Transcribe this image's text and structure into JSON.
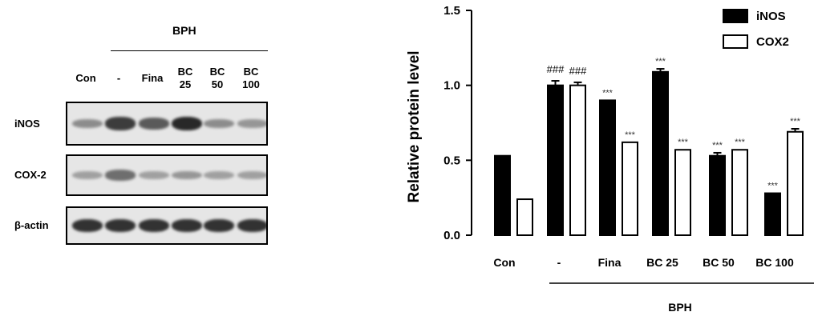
{
  "blot": {
    "group_label": "BPH",
    "lanes": [
      "Con",
      "-",
      "Fina",
      "BC\n25",
      "BC\n50",
      "BC\n100"
    ],
    "rows": [
      {
        "label": "iNOS",
        "intensity": [
          0.45,
          0.85,
          0.7,
          0.95,
          0.45,
          0.4
        ]
      },
      {
        "label": "COX-2",
        "intensity": [
          0.35,
          0.6,
          0.35,
          0.4,
          0.35,
          0.35
        ]
      },
      {
        "label": "β-actin",
        "intensity": [
          0.9,
          0.9,
          0.9,
          0.9,
          0.9,
          0.9
        ]
      }
    ]
  },
  "chart_data": {
    "type": "bar",
    "categories": [
      "Con",
      "-",
      "Fina",
      "BC  25",
      "BC  50",
      "BC 100"
    ],
    "series": [
      {
        "name": "iNOS",
        "color": "#000000",
        "values": [
          0.53,
          1.0,
          0.9,
          1.09,
          0.53,
          0.28
        ],
        "errors": [
          0.0,
          0.03,
          0.0,
          0.02,
          0.02,
          0.0
        ],
        "annotations": [
          "",
          "###",
          "***",
          "***",
          "***",
          "***"
        ]
      },
      {
        "name": "COX2",
        "color": "#ffffff",
        "values": [
          0.24,
          1.0,
          0.62,
          0.57,
          0.57,
          0.69
        ],
        "errors": [
          0.0,
          0.02,
          0.0,
          0.0,
          0.0,
          0.02
        ],
        "annotations": [
          "",
          "###",
          "***",
          "***",
          "***",
          "***"
        ]
      }
    ],
    "ylabel": "Relative protein level",
    "ylim": [
      0.0,
      1.5
    ],
    "yticks": [
      "0.0",
      "0.5",
      "1.0",
      "1.5"
    ],
    "group_label": "BPH",
    "legend_position": "top-right",
    "grid": false
  }
}
